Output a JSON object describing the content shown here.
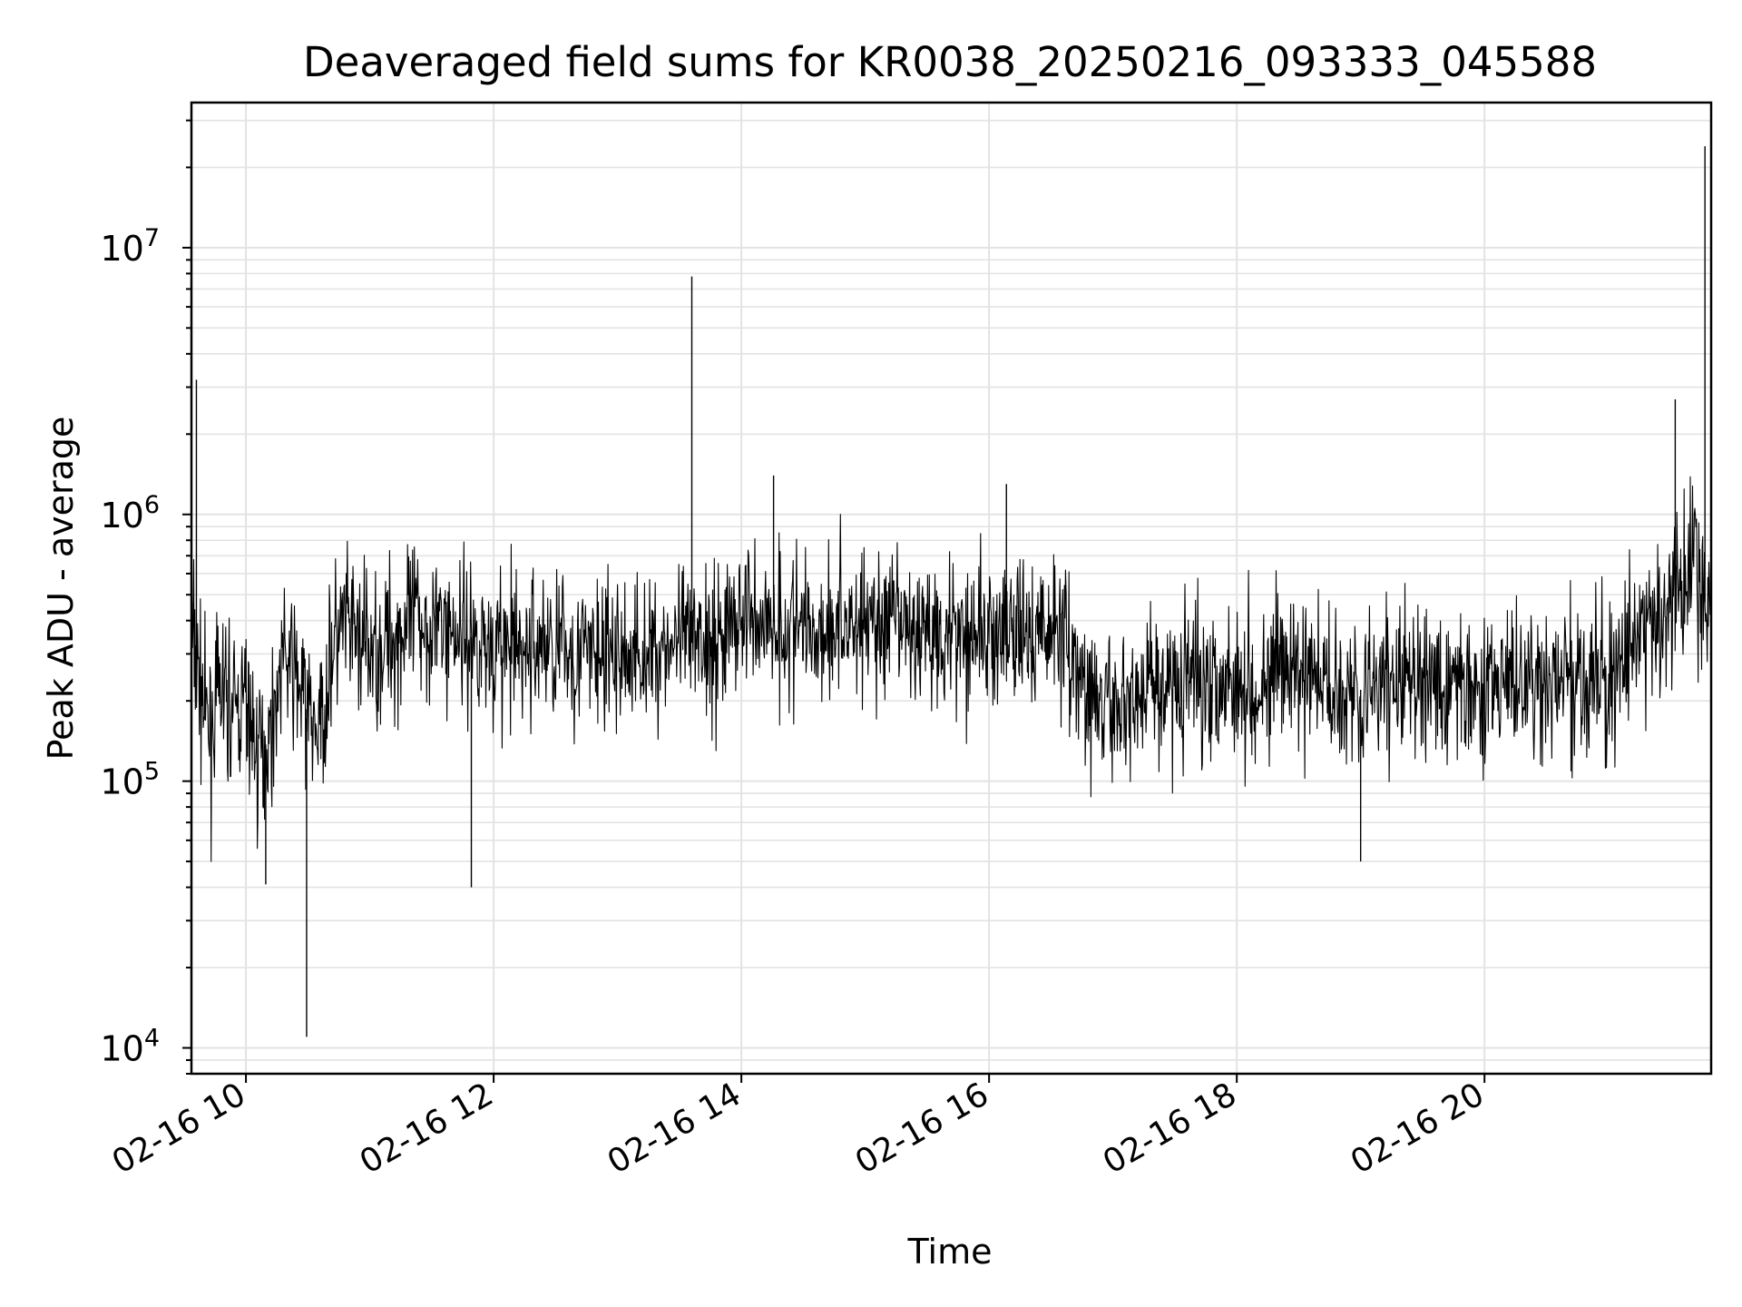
{
  "chart_data": {
    "type": "line",
    "title": "Deaveraged field sums for KR0038_20250216_093333_045588",
    "xlabel": "Time",
    "ylabel": "Peak ADU - average",
    "x_tick_labels": [
      "02-16 10",
      "02-16 12",
      "02-16 14",
      "02-16 16",
      "02-16 18",
      "02-16 20"
    ],
    "x_tick_hours": [
      10,
      12,
      14,
      16,
      18,
      20
    ],
    "xlim_hours": [
      9.56,
      21.83
    ],
    "y_scale": "log",
    "ylim": [
      8000,
      35000000
    ],
    "y_ticks": [
      {
        "base": "10",
        "exp": "4",
        "value": 10000
      },
      {
        "base": "10",
        "exp": "5",
        "value": 100000
      },
      {
        "base": "10",
        "exp": "6",
        "value": 1000000
      },
      {
        "base": "10",
        "exp": "7",
        "value": 10000000
      }
    ],
    "grid": true,
    "series": [
      {
        "color": "#000000",
        "x_hours": [
          9.56,
          9.62,
          9.7,
          9.8,
          9.9,
          10.0,
          10.1,
          10.2,
          10.3,
          10.4,
          10.5,
          10.6,
          10.7,
          10.8,
          10.9,
          11.0,
          11.2,
          11.4,
          11.6,
          11.8,
          12.0,
          12.2,
          12.4,
          12.6,
          12.8,
          13.0,
          13.2,
          13.4,
          13.6,
          13.8,
          14.0,
          14.2,
          14.4,
          14.6,
          14.8,
          15.0,
          15.2,
          15.4,
          15.6,
          15.8,
          16.0,
          16.2,
          16.4,
          16.6,
          16.7,
          16.8,
          17.0,
          17.2,
          17.4,
          17.6,
          17.8,
          18.0,
          18.2,
          18.4,
          18.6,
          18.8,
          19.0,
          19.2,
          19.4,
          19.6,
          19.8,
          20.0,
          20.2,
          20.4,
          20.6,
          20.8,
          21.0,
          21.2,
          21.4,
          21.6,
          21.7,
          21.75,
          21.83
        ],
        "y": [
          350000,
          250000,
          150000,
          220000,
          180000,
          200000,
          120000,
          150000,
          300000,
          250000,
          180000,
          150000,
          320000,
          380000,
          350000,
          300000,
          350000,
          400000,
          380000,
          350000,
          320000,
          300000,
          330000,
          310000,
          300000,
          290000,
          300000,
          320000,
          330000,
          340000,
          420000,
          400000,
          380000,
          370000,
          390000,
          400000,
          380000,
          360000,
          370000,
          380000,
          350000,
          340000,
          360000,
          380000,
          260000,
          200000,
          180000,
          220000,
          230000,
          240000,
          250000,
          240000,
          230000,
          260000,
          240000,
          230000,
          220000,
          230000,
          240000,
          230000,
          220000,
          240000,
          230000,
          220000,
          230000,
          240000,
          230000,
          320000,
          400000,
          500000,
          800000,
          450000,
          500000
        ],
        "spikes": [
          {
            "x_hour": 9.6,
            "value": 3200000
          },
          {
            "x_hour": 10.16,
            "value": 41000
          },
          {
            "x_hour": 10.49,
            "value": 11000
          },
          {
            "x_hour": 11.82,
            "value": 40000
          },
          {
            "x_hour": 13.6,
            "value": 7800000
          },
          {
            "x_hour": 14.26,
            "value": 1400000
          },
          {
            "x_hour": 16.14,
            "value": 1300000
          },
          {
            "x_hour": 19.0,
            "value": 50000
          },
          {
            "x_hour": 21.54,
            "value": 2700000
          },
          {
            "x_hour": 21.78,
            "value": 24000000
          }
        ]
      }
    ]
  }
}
